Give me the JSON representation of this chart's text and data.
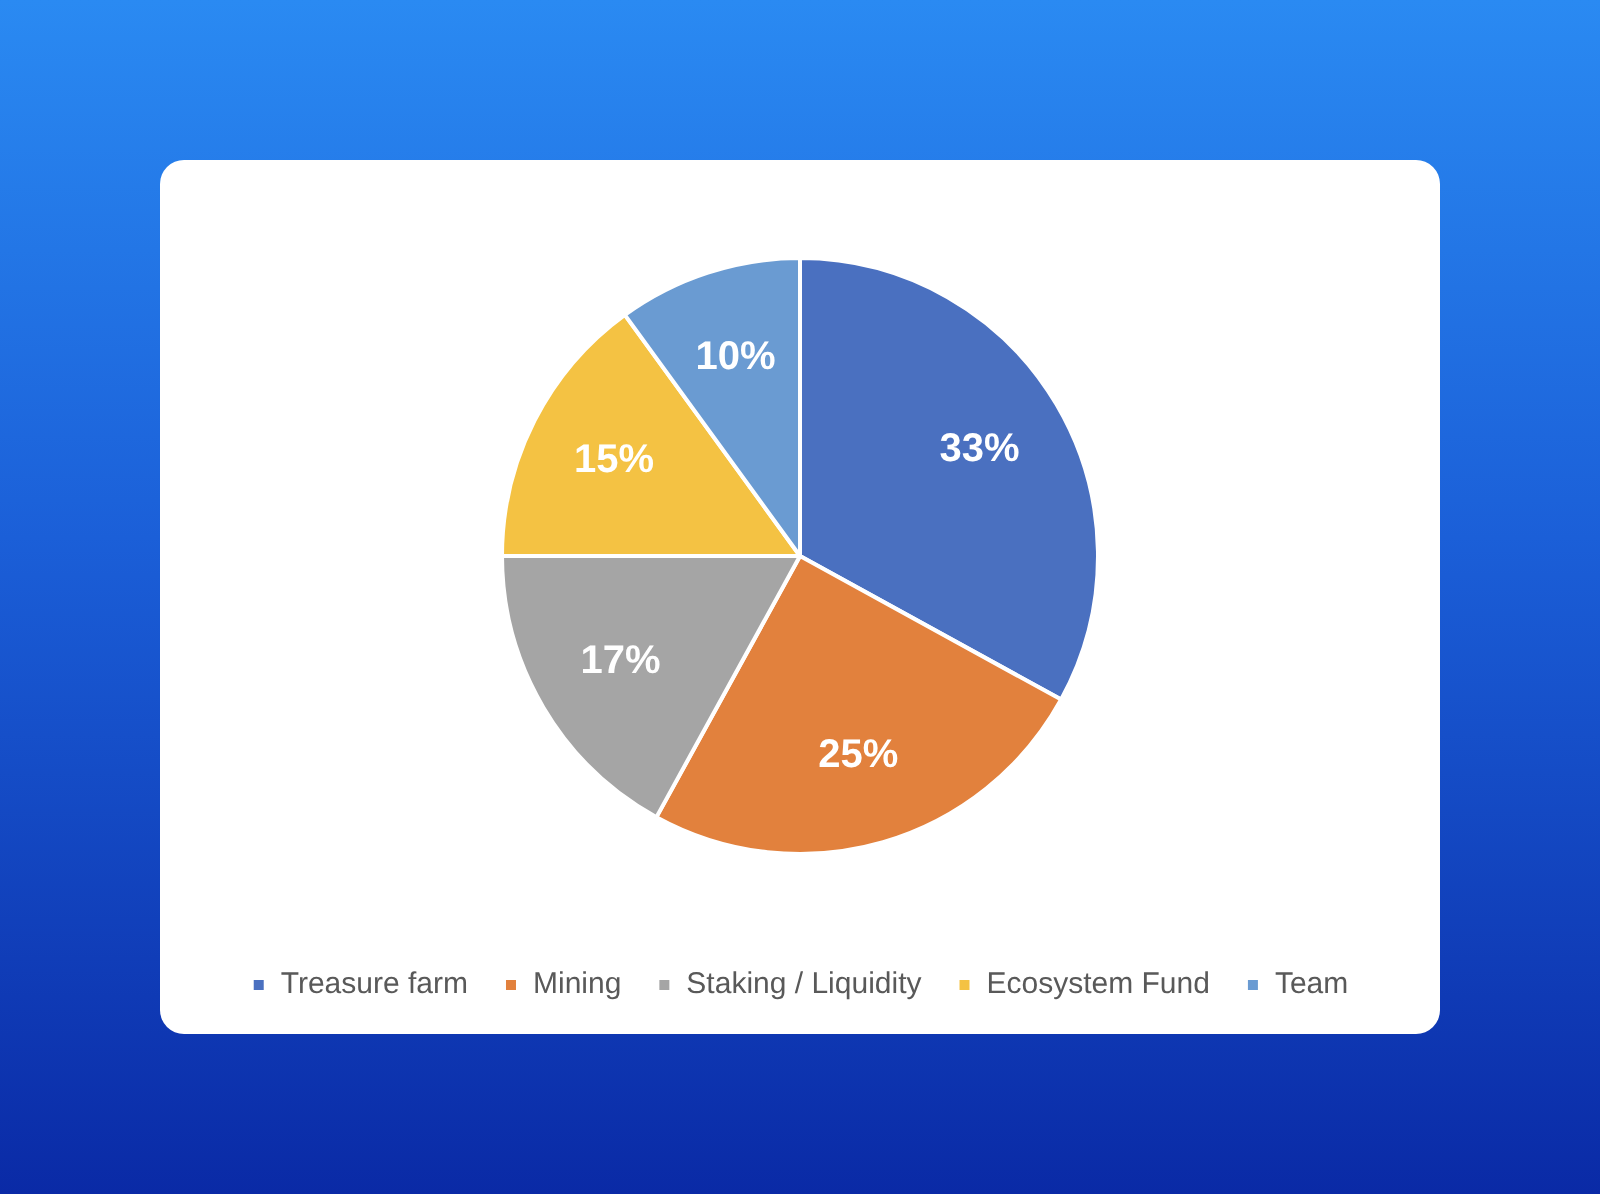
{
  "chart_data": {
    "type": "pie",
    "categories": [
      "Treasure farm",
      "Mining",
      "Staking / Liquidity",
      "Ecosystem Fund",
      "Team"
    ],
    "values": [
      33,
      25,
      17,
      15,
      10
    ],
    "colors": [
      "#4a70c0",
      "#e2813d",
      "#a5a5a5",
      "#f4c243",
      "#6a9bd2"
    ],
    "value_labels": [
      "33%",
      "25%",
      "17%",
      "15%",
      "10%"
    ],
    "legend": "bottom"
  }
}
